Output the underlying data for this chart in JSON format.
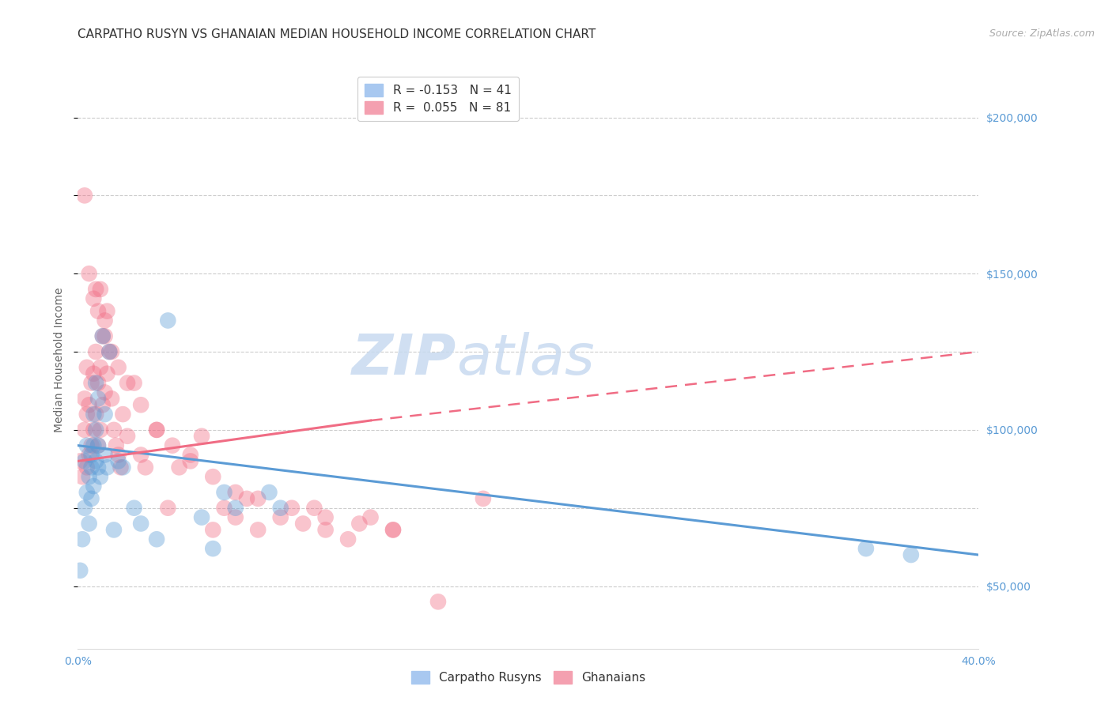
{
  "title": "CARPATHO RUSYN VS GHANAIAN MEDIAN HOUSEHOLD INCOME CORRELATION CHART",
  "source": "Source: ZipAtlas.com",
  "ylabel": "Median Household Income",
  "xlim": [
    0.0,
    0.4
  ],
  "ylim": [
    30000,
    215000
  ],
  "yticks": [
    50000,
    100000,
    150000,
    200000
  ],
  "ytick_labels": [
    "$50,000",
    "$100,000",
    "$150,000",
    "$200,000"
  ],
  "xticks": [
    0.0,
    0.05,
    0.1,
    0.15,
    0.2,
    0.25,
    0.3,
    0.35,
    0.4
  ],
  "xtick_labels": [
    "0.0%",
    "",
    "",
    "",
    "",
    "",
    "",
    "",
    "40.0%"
  ],
  "blue_color": "#5b9bd5",
  "pink_color": "#f06c84",
  "axis_color": "#5b9bd5",
  "grid_color": "#cccccc",
  "background_color": "#ffffff",
  "watermark_text": "ZIP",
  "watermark_text2": "atlas",
  "title_fontsize": 11,
  "source_fontsize": 9,
  "axis_label_fontsize": 10,
  "tick_fontsize": 10,
  "legend_fontsize": 11,
  "watermark_fontsize": 52,
  "watermark_color": "#c8daf0",
  "blue_scatter_x": [
    0.001,
    0.002,
    0.003,
    0.003,
    0.004,
    0.004,
    0.005,
    0.005,
    0.006,
    0.006,
    0.006,
    0.007,
    0.007,
    0.007,
    0.008,
    0.008,
    0.008,
    0.009,
    0.009,
    0.009,
    0.01,
    0.011,
    0.012,
    0.012,
    0.013,
    0.014,
    0.016,
    0.018,
    0.02,
    0.025,
    0.028,
    0.035,
    0.04,
    0.055,
    0.06,
    0.065,
    0.07,
    0.085,
    0.09,
    0.35,
    0.37
  ],
  "blue_scatter_y": [
    55000,
    65000,
    75000,
    90000,
    80000,
    95000,
    70000,
    85000,
    88000,
    92000,
    78000,
    82000,
    95000,
    105000,
    90000,
    100000,
    115000,
    88000,
    95000,
    110000,
    85000,
    130000,
    92000,
    105000,
    88000,
    125000,
    68000,
    90000,
    88000,
    75000,
    70000,
    65000,
    135000,
    72000,
    62000,
    80000,
    75000,
    80000,
    75000,
    62000,
    60000
  ],
  "pink_scatter_x": [
    0.001,
    0.002,
    0.003,
    0.003,
    0.004,
    0.004,
    0.004,
    0.005,
    0.005,
    0.006,
    0.006,
    0.007,
    0.007,
    0.008,
    0.008,
    0.008,
    0.009,
    0.009,
    0.01,
    0.01,
    0.01,
    0.011,
    0.011,
    0.012,
    0.012,
    0.013,
    0.013,
    0.014,
    0.015,
    0.016,
    0.017,
    0.018,
    0.019,
    0.02,
    0.022,
    0.025,
    0.028,
    0.03,
    0.035,
    0.04,
    0.045,
    0.05,
    0.055,
    0.06,
    0.065,
    0.07,
    0.075,
    0.08,
    0.09,
    0.1,
    0.105,
    0.11,
    0.12,
    0.13,
    0.14,
    0.003,
    0.005,
    0.007,
    0.009,
    0.012,
    0.015,
    0.018,
    0.022,
    0.028,
    0.035,
    0.042,
    0.05,
    0.06,
    0.07,
    0.08,
    0.095,
    0.11,
    0.125,
    0.14,
    0.16,
    0.18
  ],
  "pink_scatter_y": [
    90000,
    85000,
    100000,
    110000,
    88000,
    105000,
    120000,
    92000,
    108000,
    95000,
    115000,
    100000,
    118000,
    105000,
    125000,
    145000,
    95000,
    115000,
    100000,
    120000,
    145000,
    108000,
    130000,
    112000,
    135000,
    118000,
    138000,
    125000,
    110000,
    100000,
    95000,
    92000,
    88000,
    105000,
    98000,
    115000,
    92000,
    88000,
    100000,
    75000,
    88000,
    92000,
    98000,
    68000,
    75000,
    72000,
    78000,
    68000,
    72000,
    70000,
    75000,
    68000,
    65000,
    72000,
    68000,
    175000,
    150000,
    142000,
    138000,
    130000,
    125000,
    120000,
    115000,
    108000,
    100000,
    95000,
    90000,
    85000,
    80000,
    78000,
    75000,
    72000,
    70000,
    68000,
    45000,
    78000
  ],
  "blue_line_x": [
    0.0,
    0.4
  ],
  "blue_line_y": [
    95000,
    60000
  ],
  "pink_solid_line_x": [
    0.0,
    0.13
  ],
  "pink_solid_line_y": [
    90000,
    103000
  ],
  "pink_dashed_line_x": [
    0.13,
    0.4
  ],
  "pink_dashed_line_y": [
    103000,
    125000
  ]
}
